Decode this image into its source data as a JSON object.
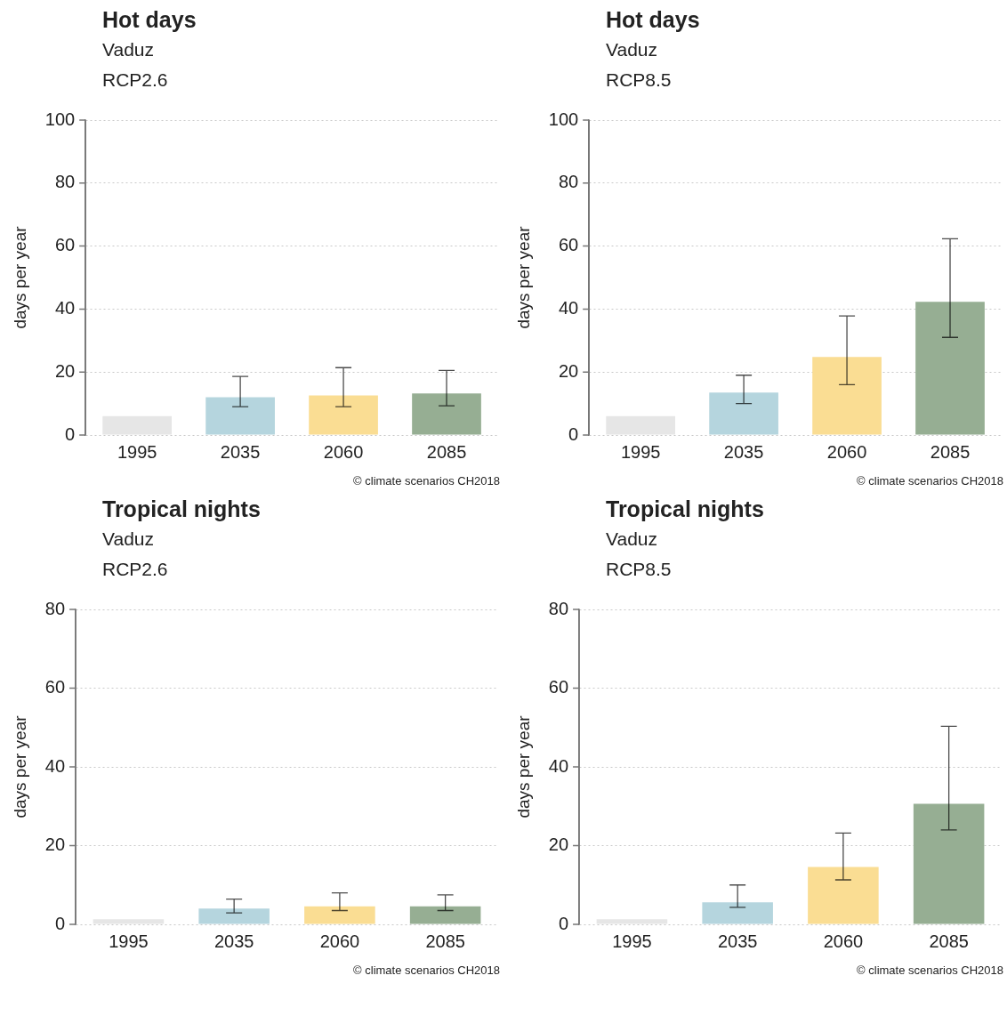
{
  "chart_data": [
    {
      "type": "bar",
      "title": "Hot days",
      "subtitle": "Vaduz\nRCP2.6",
      "ylabel": "days per year",
      "categories": [
        "1995",
        "2035",
        "2060",
        "2085"
      ],
      "values": [
        6,
        12,
        12.6,
        13.2
      ],
      "errors": [
        null,
        [
          9,
          18.6
        ],
        [
          9,
          21.4
        ],
        [
          9.3,
          20.5
        ]
      ],
      "colors": [
        "#e6e6e6",
        "#b5d5de",
        "#fadd93",
        "#96ae93"
      ],
      "ylim": [
        0,
        100
      ],
      "yticks": [
        0,
        20,
        40,
        60,
        80,
        100
      ],
      "grid": "y",
      "annotations": [
        "© climate scenarios CH2018"
      ]
    },
    {
      "type": "bar",
      "title": "Hot days",
      "subtitle": "Vaduz\nRCP8.5",
      "ylabel": "days per year",
      "categories": [
        "1995",
        "2035",
        "2060",
        "2085"
      ],
      "values": [
        6,
        13.5,
        24.8,
        42.3
      ],
      "errors": [
        null,
        [
          10,
          19
        ],
        [
          16,
          37.8
        ],
        [
          31,
          62.3
        ]
      ],
      "colors": [
        "#e6e6e6",
        "#b5d5de",
        "#fadd93",
        "#96ae93"
      ],
      "ylim": [
        0,
        100
      ],
      "yticks": [
        0,
        20,
        40,
        60,
        80,
        100
      ],
      "grid": "y",
      "annotations": [
        "© climate scenarios CH2018"
      ]
    },
    {
      "type": "bar",
      "title": "Tropical nights",
      "subtitle": "Vaduz\nRCP2.6",
      "ylabel": "days per year",
      "categories": [
        "1995",
        "2035",
        "2060",
        "2085"
      ],
      "values": [
        1.3,
        4,
        4.6,
        4.6
      ],
      "errors": [
        null,
        [
          2.9,
          6.4
        ],
        [
          3.5,
          8
        ],
        [
          3.5,
          7.5
        ]
      ],
      "colors": [
        "#e6e6e6",
        "#b5d5de",
        "#fadd93",
        "#96ae93"
      ],
      "ylim": [
        0,
        80
      ],
      "yticks": [
        0,
        20,
        40,
        60,
        80
      ],
      "grid": "y",
      "annotations": [
        "© climate scenarios CH2018"
      ]
    },
    {
      "type": "bar",
      "title": "Tropical nights",
      "subtitle": "Vaduz\nRCP8.5",
      "ylabel": "days per year",
      "categories": [
        "1995",
        "2035",
        "2060",
        "2085"
      ],
      "values": [
        1.3,
        5.6,
        14.6,
        30.6
      ],
      "errors": [
        null,
        [
          4.3,
          10
        ],
        [
          11.3,
          23.2
        ],
        [
          24,
          50.3
        ]
      ],
      "colors": [
        "#e6e6e6",
        "#b5d5de",
        "#fadd93",
        "#96ae93"
      ],
      "ylim": [
        0,
        80
      ],
      "yticks": [
        0,
        20,
        40,
        60,
        80
      ],
      "grid": "y",
      "annotations": [
        "© climate scenarios CH2018"
      ]
    }
  ]
}
